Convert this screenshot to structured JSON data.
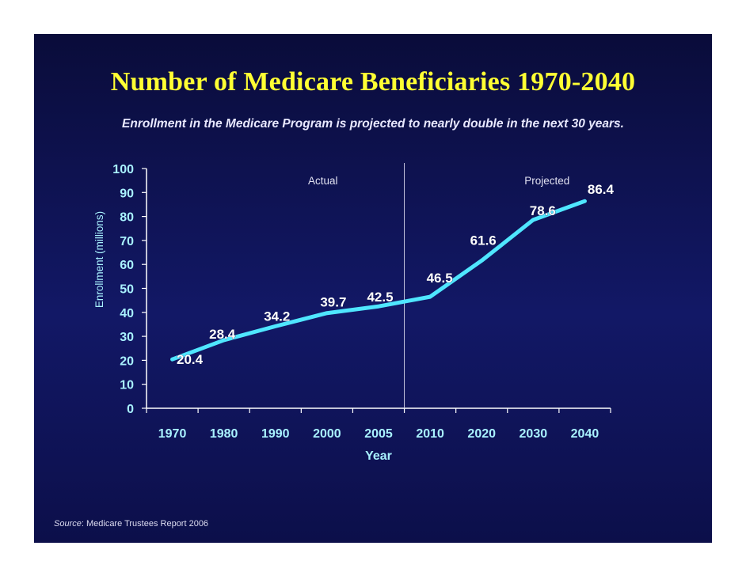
{
  "title": "Number of Medicare Beneficiaries 1970-2040",
  "subtitle": "Enrollment in the Medicare Program is projected to nearly double in the next 30 years.",
  "source": {
    "label": "Source",
    "text": ": Medicare Trustees Report 2006"
  },
  "colors": {
    "line": "#4fe6ff",
    "axis": "#ffffff",
    "tick_text": "#a9f2ff",
    "title": "#ffff33"
  },
  "chart_data": {
    "type": "line",
    "title": "Number of Medicare Beneficiaries 1970-2040",
    "xlabel": "Year",
    "ylabel": "Enrollment (millions)",
    "categories": [
      "1970",
      "1980",
      "1990",
      "2000",
      "2005",
      "2010",
      "2020",
      "2030",
      "2040"
    ],
    "ylim": [
      0,
      100
    ],
    "yticks": [
      "0",
      "10",
      "20",
      "30",
      "40",
      "50",
      "60",
      "70",
      "80",
      "90",
      "100"
    ],
    "series": [
      {
        "values": [
          20.4,
          28.4,
          34.2,
          39.7,
          42.5,
          46.5,
          61.6,
          78.6,
          86.4
        ],
        "labels": [
          "20.4",
          "28.4",
          "34.2",
          "39.7",
          "42.5",
          "46.5",
          "61.6",
          "78.6",
          "86.4"
        ]
      }
    ],
    "annotations": [
      {
        "text": "Actual",
        "region": "1970-2005"
      },
      {
        "text": "Projected",
        "region": "2010-2040"
      }
    ],
    "divider_between": [
      "2005",
      "2010"
    ],
    "grid": false,
    "legend": "none"
  }
}
